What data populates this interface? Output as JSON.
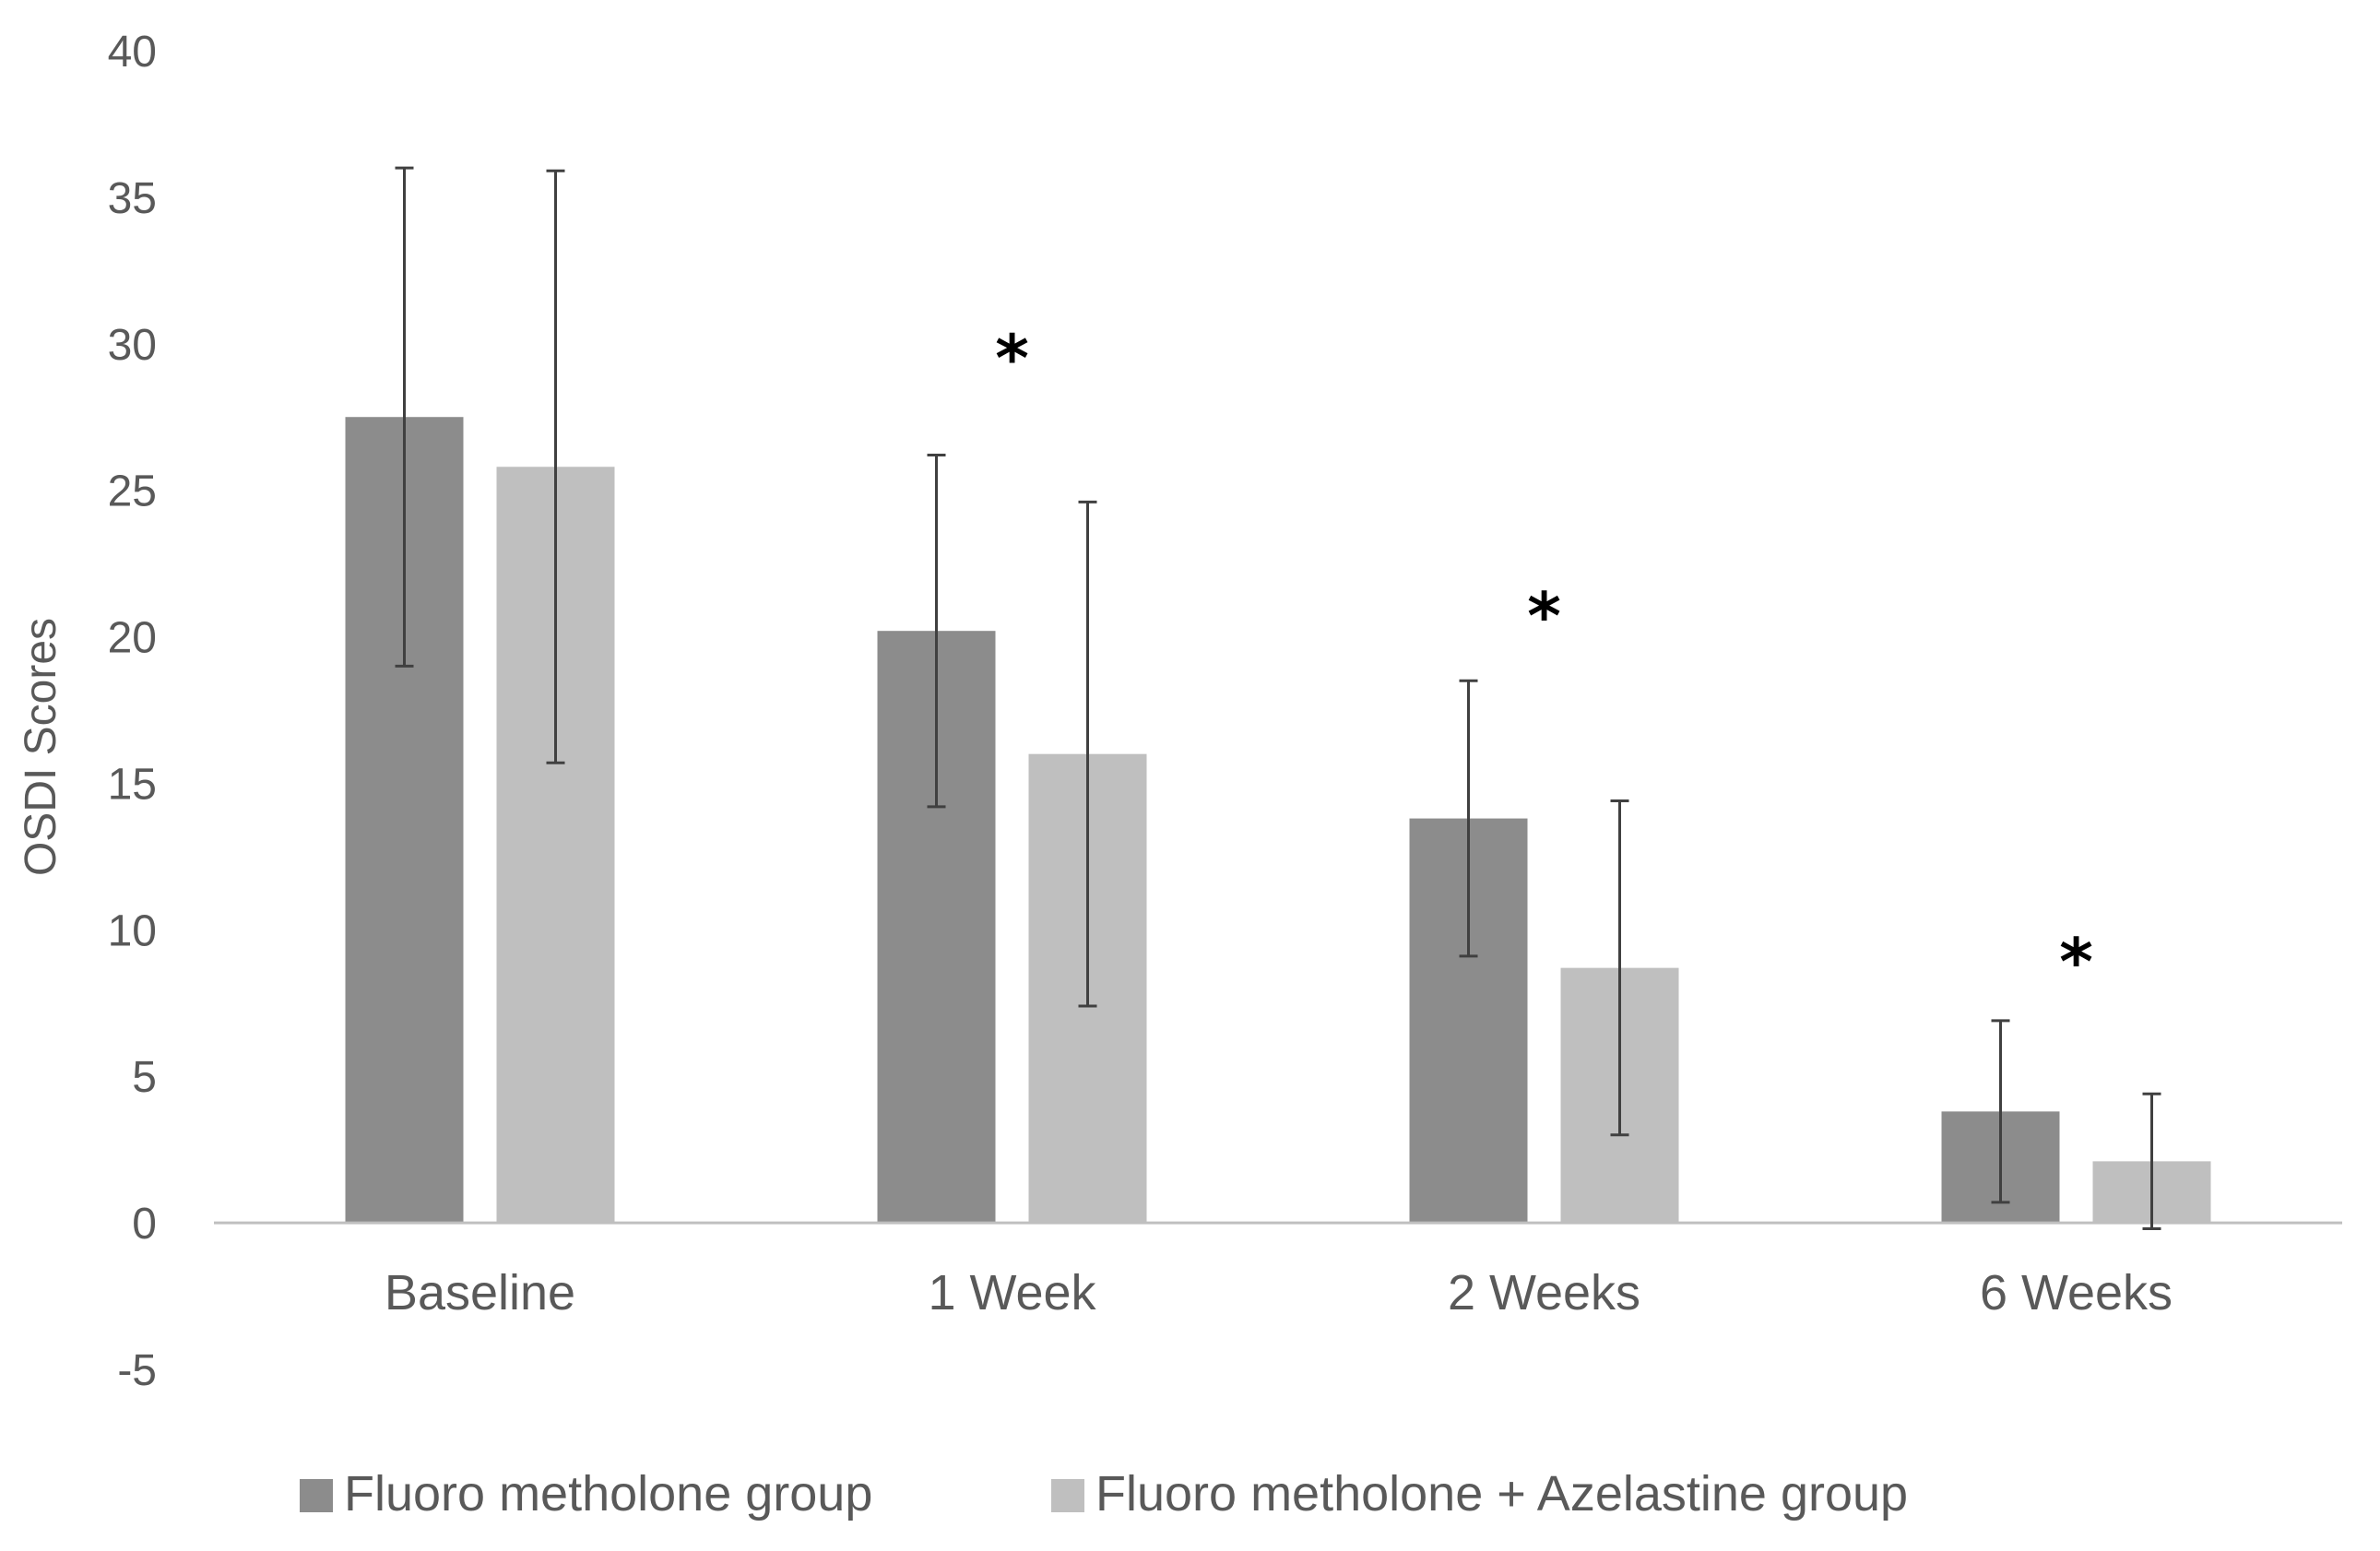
{
  "chart_data": {
    "type": "bar",
    "title": "",
    "xlabel": "",
    "ylabel": "OSDI Scores",
    "ylim": [
      -5,
      40
    ],
    "yticks": [
      "40",
      "35",
      "30",
      "25",
      "20",
      "15",
      "10",
      "5",
      "0",
      "-5"
    ],
    "grid": false,
    "legend_position": "bottom",
    "categories": [
      "Baseline",
      "1 Week",
      "2 Weeks",
      "6 Weeks"
    ],
    "series": [
      {
        "name": "Fluoro metholone group",
        "color": "#8c8c8c",
        "values": [
          27.5,
          20.2,
          13.8,
          3.8
        ],
        "error": [
          8.5,
          6.0,
          4.7,
          3.1
        ]
      },
      {
        "name": "Fluoro metholone + Azelastine group",
        "color": "#bfbfbf",
        "values": [
          25.8,
          16.0,
          8.7,
          2.1
        ],
        "error": [
          10.1,
          8.6,
          5.7,
          2.3
        ]
      }
    ],
    "significance": [
      {
        "category": "1 Week",
        "mark": "*",
        "y": 30
      },
      {
        "category": "2 Weeks",
        "mark": "*",
        "y": 21.2
      },
      {
        "category": "6 Weeks",
        "mark": "*",
        "y": 9.4
      }
    ]
  }
}
